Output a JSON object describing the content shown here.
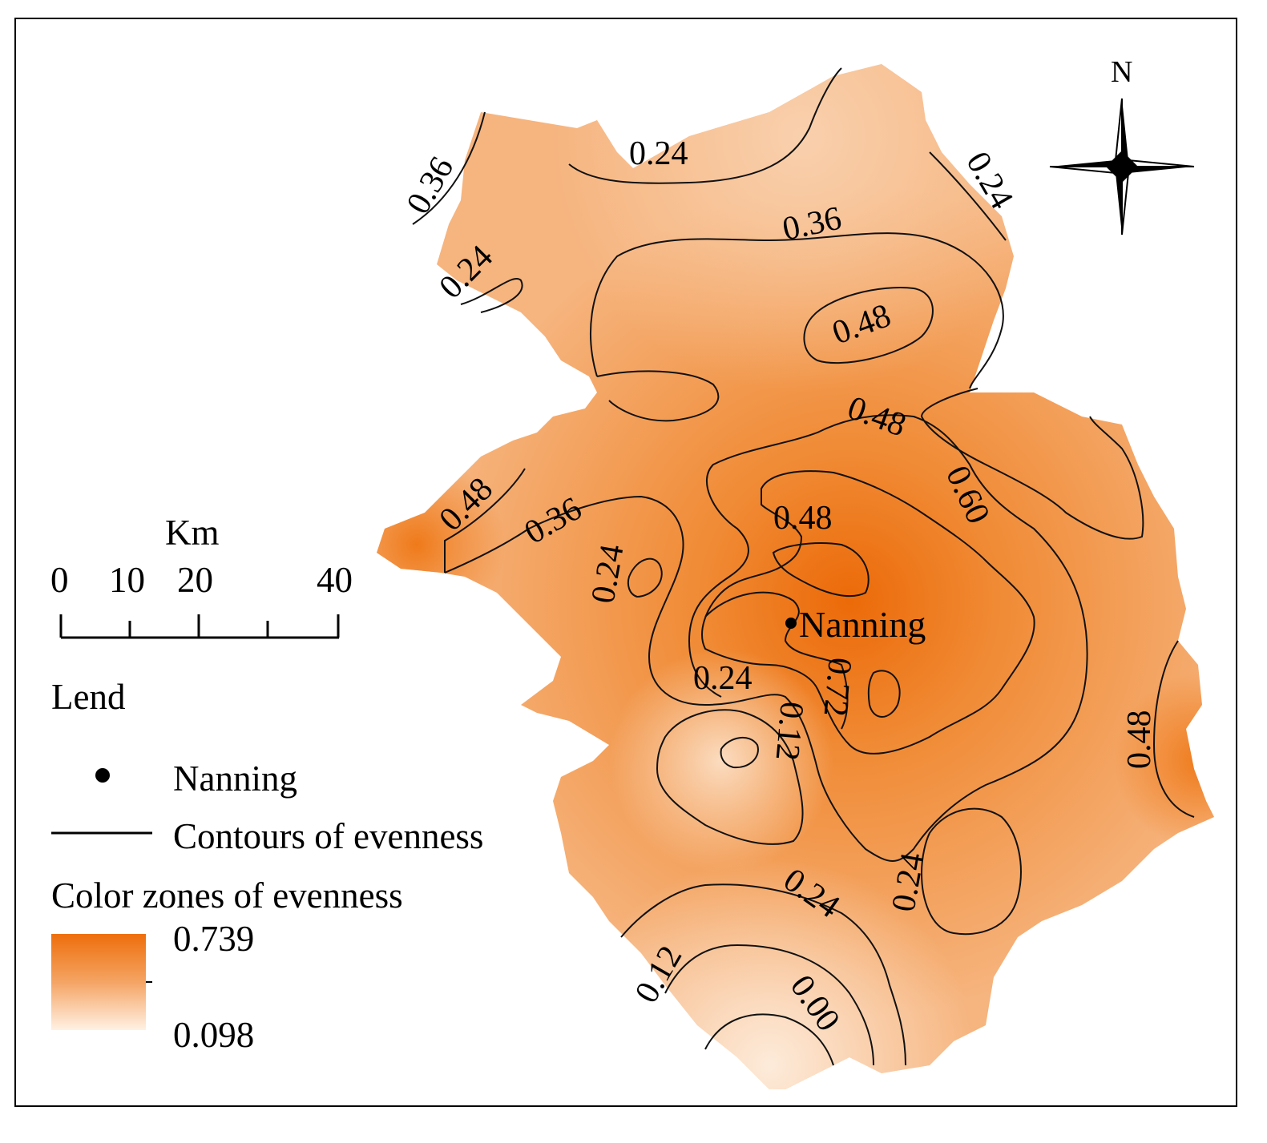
{
  "map": {
    "city_label": "Nanning",
    "contour_labels": [
      "0.36",
      "0.24",
      "0.24",
      "0.36",
      "0.24",
      "0.48",
      "0.48",
      "0.48",
      "0.36",
      "0.24",
      "0.48",
      "0.60",
      "0.72",
      "0.24",
      "0.12",
      "0.48",
      "0.24",
      "0.24",
      "0.12",
      "0.00"
    ],
    "colors": {
      "high": "#ee6e0c",
      "mid": "#f3a059",
      "low": "#fde6d0",
      "contour": "#111111"
    }
  },
  "north_arrow": {
    "label": "N",
    "icon": "compass-rose-icon"
  },
  "scale_bar": {
    "unit": "Km",
    "ticks": [
      "0",
      "10",
      "20",
      "40"
    ]
  },
  "legend": {
    "title": "Lend",
    "point_label": "Nanning",
    "line_label": "Contours of evenness",
    "ramp_title": "Color zones of evenness",
    "ramp_max": "0.739",
    "ramp_min": "0.098"
  }
}
